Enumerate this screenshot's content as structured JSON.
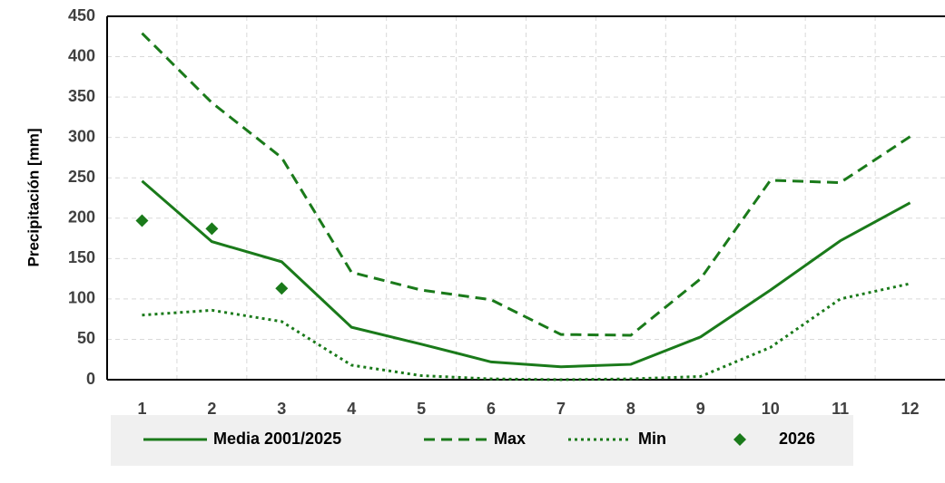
{
  "chart_data": {
    "type": "line",
    "y_label": "Precipitación [mm]",
    "categories": [
      "1",
      "2",
      "3",
      "4",
      "5",
      "6",
      "7",
      "8",
      "9",
      "10",
      "11",
      "12"
    ],
    "series": [
      {
        "name": "Media 2001/2025",
        "color": "#1a7a1a",
        "style": "solid",
        "values": [
          246,
          171,
          146,
          65,
          44,
          22,
          16,
          19,
          53,
          111,
          172,
          219
        ]
      },
      {
        "name": "Max",
        "color": "#1a7a1a",
        "style": "dashed",
        "values": [
          429,
          343,
          275,
          133,
          111,
          99,
          56,
          55,
          125,
          247,
          244,
          301
        ]
      },
      {
        "name": "Min",
        "color": "#1a7a1a",
        "style": "dotted",
        "values": [
          80,
          86,
          72,
          18,
          5,
          1,
          0,
          1,
          4,
          40,
          100,
          119
        ]
      },
      {
        "name": "2026",
        "color": "#1a7a1a",
        "style": "markers",
        "values": [
          197,
          187,
          113,
          null,
          null,
          null,
          null,
          null,
          null,
          null,
          null,
          null
        ]
      }
    ],
    "ylim": [
      0,
      450
    ],
    "yticks": [
      0,
      50,
      100,
      150,
      200,
      250,
      300,
      350,
      400,
      450
    ],
    "grid": true,
    "legend": "bottom"
  }
}
